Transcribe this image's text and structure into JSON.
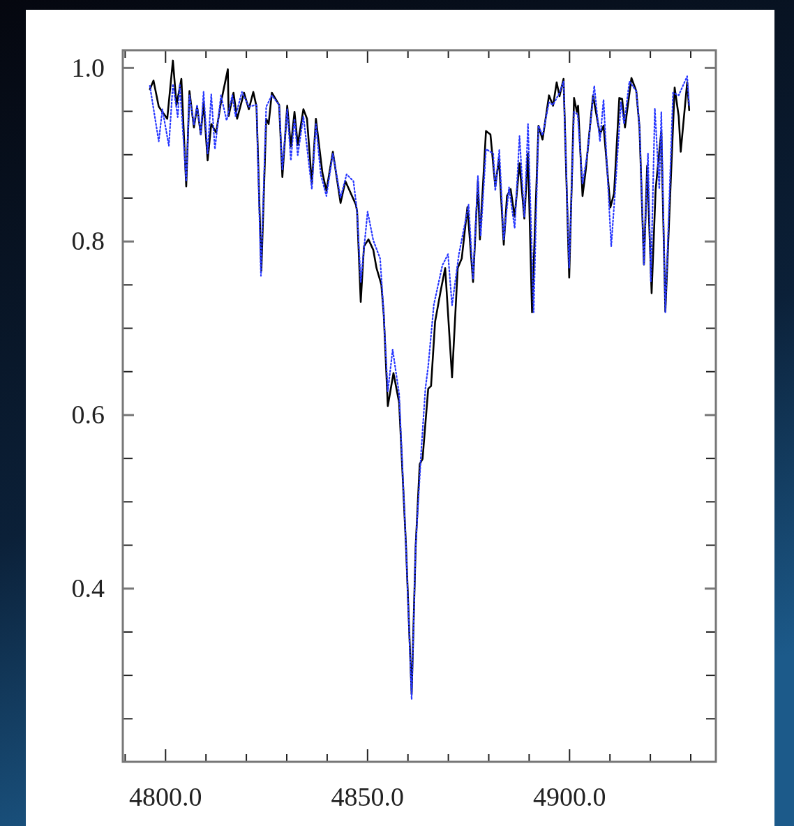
{
  "chart_data": {
    "type": "line",
    "xlim": [
      4789.5,
      4936.3
    ],
    "ylim": [
      0.2,
      1.02
    ],
    "xticks": [
      {
        "value": 4790,
        "label": null
      },
      {
        "value": 4800,
        "label": "4800.0"
      },
      {
        "value": 4810,
        "label": null
      },
      {
        "value": 4820,
        "label": null
      },
      {
        "value": 4830,
        "label": null
      },
      {
        "value": 4840,
        "label": null
      },
      {
        "value": 4850,
        "label": "4850.0"
      },
      {
        "value": 4860,
        "label": null
      },
      {
        "value": 4870,
        "label": null
      },
      {
        "value": 4880,
        "label": null
      },
      {
        "value": 4890,
        "label": null
      },
      {
        "value": 4900,
        "label": "4900.0"
      },
      {
        "value": 4910,
        "label": null
      },
      {
        "value": 4920,
        "label": null
      },
      {
        "value": 4930,
        "label": null
      }
    ],
    "yticks": [
      {
        "value": 0.25,
        "label": null
      },
      {
        "value": 0.3,
        "label": null
      },
      {
        "value": 0.35,
        "label": null
      },
      {
        "value": 0.4,
        "label": "0.4"
      },
      {
        "value": 0.45,
        "label": null
      },
      {
        "value": 0.5,
        "label": null
      },
      {
        "value": 0.55,
        "label": null
      },
      {
        "value": 0.6,
        "label": "0.6"
      },
      {
        "value": 0.65,
        "label": null
      },
      {
        "value": 0.7,
        "label": null
      },
      {
        "value": 0.75,
        "label": null
      },
      {
        "value": 0.8,
        "label": "0.8"
      },
      {
        "value": 0.85,
        "label": null
      },
      {
        "value": 0.9,
        "label": null
      },
      {
        "value": 0.95,
        "label": null
      },
      {
        "value": 1.0,
        "label": "1.0"
      }
    ],
    "grid": false,
    "series": [
      {
        "color": "#000000",
        "line_style": "solid",
        "x": [
          4796.2,
          4797.1,
          4798.4,
          4800.5,
          4801.9,
          4802.8,
          4804.0,
          4805.2,
          4806.0,
          4807.1,
          4807.9,
          4808.8,
          4809.5,
          4810.5,
          4811.4,
          4812.6,
          4813.8,
          4815.5,
          4815.7,
          4816.9,
          4817.8,
          4819.5,
          4820.7,
          4821.8,
          4822.6,
          4823.8,
          4825.0,
          4825.6,
          4826.4,
          4828.2,
          4829.0,
          4830.2,
          4831.1,
          4832.0,
          4832.8,
          4834.2,
          4835.1,
          4836.3,
          4837.3,
          4838.9,
          4839.9,
          4841.5,
          4843.4,
          4844.6,
          4847.2,
          4847.5,
          4848.4,
          4849.2,
          4850.3,
          4851.5,
          4852.3,
          4853.5,
          4854.1,
          4855.1,
          4856.5,
          4857.9,
          4859.6,
          4861.0,
          4862.0,
          4863.0,
          4863.7,
          4865.1,
          4865.8,
          4866.8,
          4868.2,
          4869.3,
          4871.0,
          4872.4,
          4873.4,
          4874.8,
          4876.2,
          4877.4,
          4877.9,
          4879.4,
          4880.5,
          4881.7,
          4882.6,
          4883.8,
          4884.6,
          4885.5,
          4886.5,
          4887.7,
          4888.9,
          4889.8,
          4890.8,
          4892.4,
          4893.4,
          4895.0,
          4896.0,
          4896.9,
          4897.6,
          4898.6,
          4900.0,
          4901.2,
          4901.9,
          4902.2,
          4903.3,
          4904.1,
          4905.9,
          4907.6,
          4908.5,
          4910.2,
          4911.1,
          4912.4,
          4913.1,
          4913.8,
          4915.4,
          4916.6,
          4917.4,
          4918.5,
          4919.3,
          4920.4,
          4921.4,
          4922.8,
          4923.8,
          4926.1,
          4927.1,
          4927.6,
          4929.2,
          4929.7
        ],
        "values": [
          0.975,
          0.985,
          0.955,
          0.941,
          1.008,
          0.957,
          0.987,
          0.863,
          0.973,
          0.931,
          0.955,
          0.923,
          0.96,
          0.893,
          0.935,
          0.925,
          0.96,
          0.998,
          0.944,
          0.971,
          0.941,
          0.971,
          0.952,
          0.972,
          0.955,
          0.766,
          0.941,
          0.935,
          0.971,
          0.957,
          0.874,
          0.956,
          0.909,
          0.949,
          0.911,
          0.952,
          0.941,
          0.866,
          0.941,
          0.879,
          0.858,
          0.903,
          0.844,
          0.869,
          0.842,
          0.834,
          0.73,
          0.794,
          0.802,
          0.79,
          0.769,
          0.75,
          0.715,
          0.61,
          0.648,
          0.614,
          0.449,
          0.278,
          0.449,
          0.543,
          0.549,
          0.63,
          0.633,
          0.707,
          0.743,
          0.769,
          0.643,
          0.769,
          0.78,
          0.839,
          0.753,
          0.869,
          0.802,
          0.927,
          0.923,
          0.863,
          0.895,
          0.796,
          0.852,
          0.86,
          0.828,
          0.89,
          0.826,
          0.901,
          0.718,
          0.933,
          0.917,
          0.968,
          0.956,
          0.983,
          0.967,
          0.987,
          0.758,
          0.965,
          0.949,
          0.956,
          0.852,
          0.882,
          0.968,
          0.923,
          0.933,
          0.839,
          0.855,
          0.965,
          0.964,
          0.931,
          0.988,
          0.973,
          0.931,
          0.773,
          0.887,
          0.74,
          0.86,
          0.927,
          0.719,
          0.977,
          0.944,
          0.903,
          0.983,
          0.951
        ]
      },
      {
        "color": "#2838ff",
        "line_style": "dotted",
        "x": [
          4796.2,
          4798.4,
          4799.3,
          4800.9,
          4801.9,
          4803.1,
          4803.6,
          4805.2,
          4806.0,
          4807.1,
          4807.9,
          4808.8,
          4809.5,
          4810.5,
          4811.4,
          4812.3,
          4813.8,
          4815.2,
          4816.6,
          4817.4,
          4819.0,
          4820.7,
          4822.6,
          4823.7,
          4825.0,
          4826.4,
          4828.2,
          4829.0,
          4830.2,
          4831.1,
          4832.0,
          4832.8,
          4834.2,
          4836.3,
          4837.3,
          4838.5,
          4839.9,
          4841.5,
          4843.4,
          4844.9,
          4846.6,
          4847.5,
          4848.4,
          4850.1,
          4851.5,
          4853.2,
          4854.1,
          4855.1,
          4856.3,
          4857.9,
          4859.6,
          4861.0,
          4862.0,
          4863.4,
          4864.4,
          4865.1,
          4866.5,
          4868.6,
          4870.0,
          4871.0,
          4872.7,
          4875.1,
          4876.2,
          4877.4,
          4878.1,
          4879.4,
          4881.2,
          4881.7,
          4882.7,
          4883.8,
          4885.1,
          4886.5,
          4887.7,
          4888.9,
          4889.8,
          4891.2,
          4892.4,
          4893.4,
          4895.0,
          4896.0,
          4897.6,
          4898.6,
          4900.0,
          4901.2,
          4902.1,
          4903.3,
          4904.5,
          4906.2,
          4907.6,
          4908.5,
          4910.4,
          4911.4,
          4912.8,
          4913.6,
          4914.9,
          4916.6,
          4917.4,
          4918.5,
          4919.5,
          4920.2,
          4921.2,
          4922.3,
          4922.8,
          4923.8,
          4925.7,
          4927.1,
          4929.2,
          4929.7
        ],
        "values": [
          0.979,
          0.915,
          0.952,
          0.91,
          0.981,
          0.943,
          0.981,
          0.869,
          0.968,
          0.934,
          0.957,
          0.923,
          0.972,
          0.901,
          0.969,
          0.906,
          0.968,
          0.939,
          0.968,
          0.944,
          0.972,
          0.955,
          0.957,
          0.76,
          0.955,
          0.968,
          0.957,
          0.882,
          0.952,
          0.893,
          0.941,
          0.899,
          0.944,
          0.86,
          0.935,
          0.877,
          0.852,
          0.901,
          0.85,
          0.877,
          0.869,
          0.834,
          0.753,
          0.834,
          0.801,
          0.78,
          0.715,
          0.627,
          0.675,
          0.624,
          0.449,
          0.272,
          0.449,
          0.56,
          0.63,
          0.656,
          0.727,
          0.772,
          0.785,
          0.726,
          0.785,
          0.842,
          0.756,
          0.875,
          0.806,
          0.906,
          0.901,
          0.858,
          0.905,
          0.802,
          0.862,
          0.815,
          0.921,
          0.828,
          0.935,
          0.718,
          0.933,
          0.922,
          0.96,
          0.957,
          0.971,
          0.984,
          0.769,
          0.949,
          0.946,
          0.866,
          0.901,
          0.979,
          0.915,
          0.963,
          0.794,
          0.86,
          0.96,
          0.935,
          0.984,
          0.973,
          0.933,
          0.773,
          0.901,
          0.753,
          0.953,
          0.86,
          0.949,
          0.718,
          0.971,
          0.968,
          0.99,
          0.956
        ]
      }
    ]
  }
}
